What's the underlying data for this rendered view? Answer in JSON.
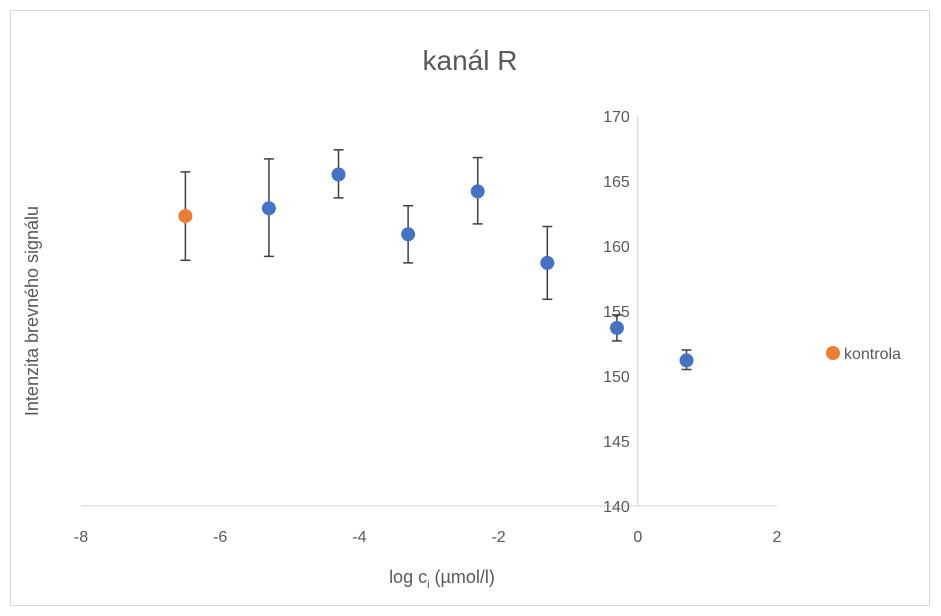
{
  "chart_data": {
    "type": "scatter",
    "title": "kanál R",
    "xlabel_main": "log c",
    "xlabel_sub": "i",
    "xlabel_tail": " (µmol/l)",
    "ylabel": "Intenzita brevného signálu",
    "xlim": [
      -8,
      2
    ],
    "ylim": [
      140,
      170
    ],
    "x_ticks": [
      -8,
      -6,
      -4,
      -2,
      0,
      2
    ],
    "y_ticks": [
      140,
      145,
      150,
      155,
      160,
      165,
      170
    ],
    "x_tick_labels": [
      "-8",
      "-6",
      "-4",
      "-2",
      "0",
      "2"
    ],
    "y_tick_labels": [
      "140",
      "145",
      "150",
      "155",
      "160",
      "165",
      "170"
    ],
    "legend": {
      "label": "kontrola",
      "placement": "right"
    },
    "series": [
      {
        "name": "kontrola",
        "color": "#ed7d31",
        "points": [
          {
            "x": -6.5,
            "y": 162.3,
            "err_low": 3.4,
            "err_high": 3.4
          }
        ]
      },
      {
        "color": "#4472c4",
        "points": [
          {
            "x": -5.3,
            "y": 162.9,
            "err_low": 3.7,
            "err_high": 3.8
          },
          {
            "x": -4.3,
            "y": 165.5,
            "err_low": 1.8,
            "err_high": 1.9
          },
          {
            "x": -3.3,
            "y": 160.9,
            "err_low": 2.2,
            "err_high": 2.2
          },
          {
            "x": -2.3,
            "y": 164.2,
            "err_low": 2.5,
            "err_high": 2.6
          },
          {
            "x": -1.3,
            "y": 158.7,
            "err_low": 2.8,
            "err_high": 2.8
          },
          {
            "x": -0.3,
            "y": 153.7,
            "err_low": 1.0,
            "err_high": 1.0
          },
          {
            "x": 0.7,
            "y": 151.2,
            "err_low": 0.7,
            "err_high": 0.8
          }
        ]
      }
    ],
    "axis_color": "#d9d9d9",
    "errorbar_color": "#404040"
  }
}
